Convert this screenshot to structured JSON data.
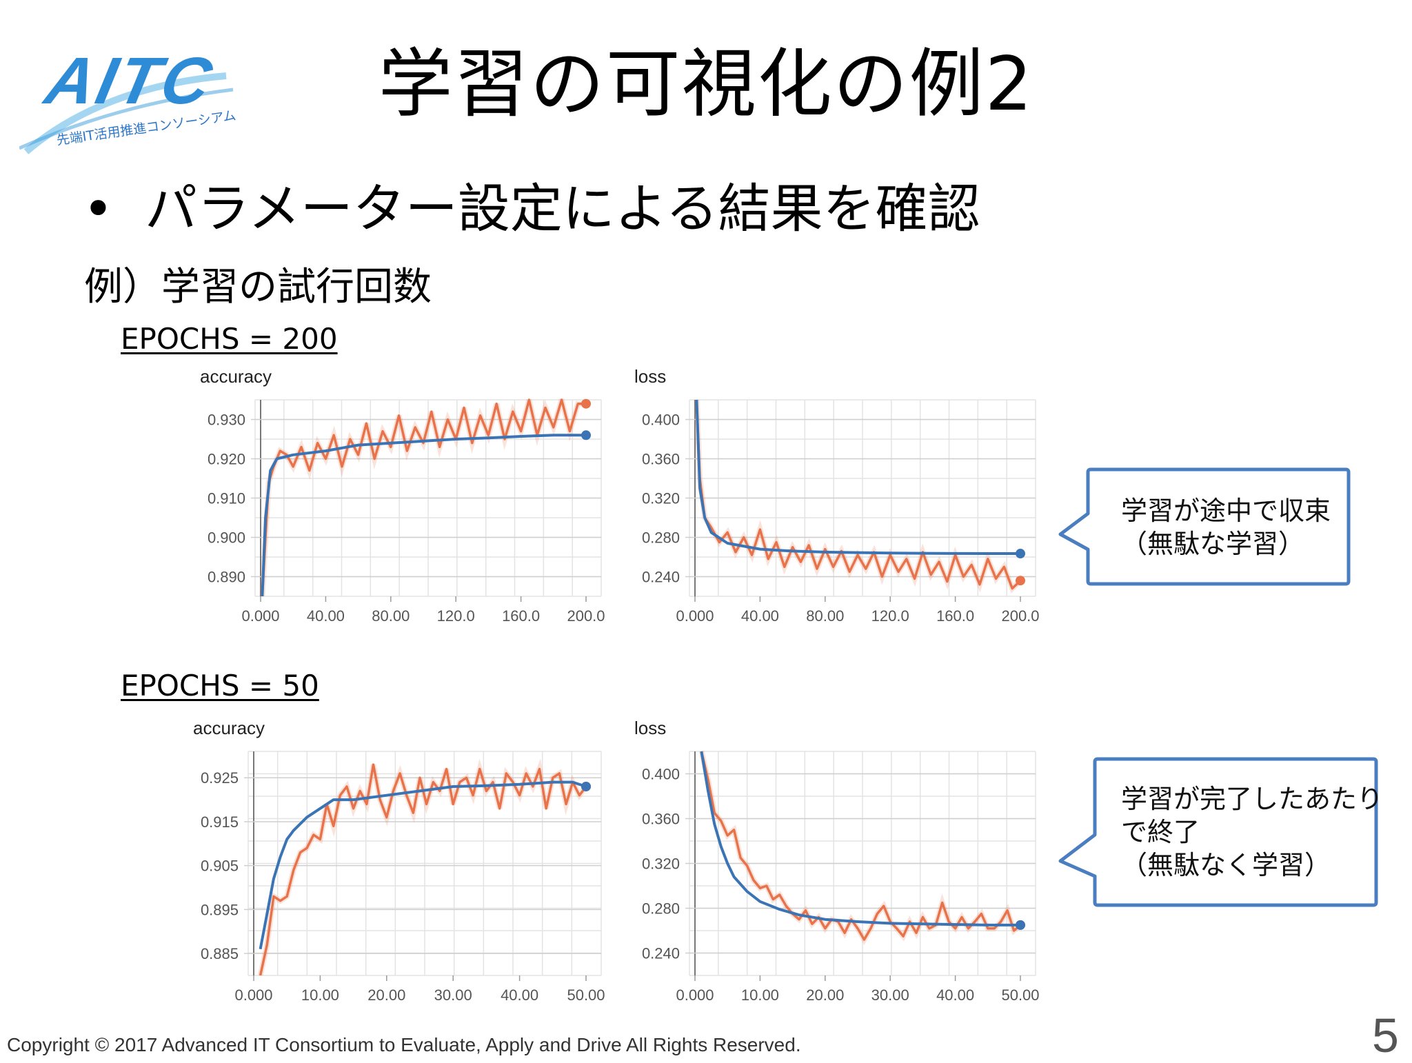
{
  "logo": {
    "wordmark": "AITC",
    "tagline": "先端IT活用推進コンソーシアム"
  },
  "slide": {
    "title": "学習の可視化の例2",
    "bullet": "パラメーター設定による結果を確認",
    "example": "例）学習の試行回数",
    "epochs_200": "EPOCHS = 200",
    "epochs_50": "EPOCHS = 50"
  },
  "callouts": {
    "top": [
      "学習が途中で収束",
      "（無駄な学習）"
    ],
    "bottom": [
      "学習が完了したあたり",
      "で終了",
      "（無駄なく学習）"
    ]
  },
  "colors": {
    "raw": "#E8734A",
    "smoothed": "#3A74B5",
    "callout_border": "#4A7EC0"
  },
  "chart_data": [
    {
      "type": "line",
      "title": "accuracy",
      "x_ticks": [
        "0.000",
        "40.00",
        "80.00",
        "120.0",
        "160.0",
        "200.0"
      ],
      "y_ticks": [
        "0.930",
        "0.920",
        "0.910",
        "0.900",
        "0.890"
      ],
      "xlim": [
        0,
        200
      ],
      "ylim": [
        0.885,
        0.935
      ],
      "series": [
        {
          "values": [
            [
              1,
              0.885
            ],
            [
              3,
              0.9
            ],
            [
              5,
              0.914
            ],
            [
              8,
              0.918
            ],
            [
              12,
              0.922
            ],
            [
              16,
              0.921
            ],
            [
              20,
              0.918
            ],
            [
              25,
              0.923
            ],
            [
              30,
              0.917
            ],
            [
              35,
              0.924
            ],
            [
              40,
              0.92
            ],
            [
              45,
              0.926
            ],
            [
              50,
              0.918
            ],
            [
              55,
              0.925
            ],
            [
              60,
              0.921
            ],
            [
              65,
              0.929
            ],
            [
              70,
              0.92
            ],
            [
              75,
              0.927
            ],
            [
              80,
              0.923
            ],
            [
              85,
              0.931
            ],
            [
              90,
              0.922
            ],
            [
              95,
              0.928
            ],
            [
              100,
              0.924
            ],
            [
              105,
              0.932
            ],
            [
              110,
              0.923
            ],
            [
              115,
              0.93
            ],
            [
              120,
              0.925
            ],
            [
              125,
              0.933
            ],
            [
              130,
              0.924
            ],
            [
              135,
              0.931
            ],
            [
              140,
              0.926
            ],
            [
              145,
              0.934
            ],
            [
              150,
              0.925
            ],
            [
              155,
              0.932
            ],
            [
              160,
              0.927
            ],
            [
              165,
              0.935
            ],
            [
              170,
              0.926
            ],
            [
              175,
              0.933
            ],
            [
              180,
              0.928
            ],
            [
              185,
              0.935
            ],
            [
              190,
              0.927
            ],
            [
              195,
              0.934
            ],
            [
              200,
              0.934
            ]
          ]
        },
        {
          "values": [
            [
              1,
              0.885
            ],
            [
              3,
              0.905
            ],
            [
              6,
              0.917
            ],
            [
              10,
              0.92
            ],
            [
              20,
              0.921
            ],
            [
              40,
              0.922
            ],
            [
              60,
              0.9235
            ],
            [
              80,
              0.924
            ],
            [
              100,
              0.9245
            ],
            [
              120,
              0.925
            ],
            [
              140,
              0.9253
            ],
            [
              160,
              0.9257
            ],
            [
              180,
              0.926
            ],
            [
              200,
              0.926
            ]
          ]
        }
      ]
    },
    {
      "type": "line",
      "title": "loss",
      "x_ticks": [
        "0.000",
        "40.00",
        "80.00",
        "120.0",
        "160.0",
        "200.0"
      ],
      "y_ticks": [
        "0.400",
        "0.360",
        "0.320",
        "0.280",
        "0.240"
      ],
      "xlim": [
        0,
        200
      ],
      "ylim": [
        0.22,
        0.42
      ],
      "series": [
        {
          "values": [
            [
              1,
              0.42
            ],
            [
              3,
              0.34
            ],
            [
              6,
              0.3
            ],
            [
              10,
              0.29
            ],
            [
              15,
              0.275
            ],
            [
              20,
              0.285
            ],
            [
              25,
              0.265
            ],
            [
              30,
              0.28
            ],
            [
              35,
              0.262
            ],
            [
              40,
              0.288
            ],
            [
              45,
              0.258
            ],
            [
              50,
              0.275
            ],
            [
              55,
              0.25
            ],
            [
              60,
              0.27
            ],
            [
              65,
              0.255
            ],
            [
              70,
              0.272
            ],
            [
              75,
              0.248
            ],
            [
              80,
              0.268
            ],
            [
              85,
              0.25
            ],
            [
              90,
              0.266
            ],
            [
              95,
              0.245
            ],
            [
              100,
              0.262
            ],
            [
              105,
              0.248
            ],
            [
              110,
              0.265
            ],
            [
              115,
              0.24
            ],
            [
              120,
              0.262
            ],
            [
              125,
              0.245
            ],
            [
              130,
              0.258
            ],
            [
              135,
              0.238
            ],
            [
              140,
              0.265
            ],
            [
              145,
              0.242
            ],
            [
              150,
              0.255
            ],
            [
              155,
              0.235
            ],
            [
              160,
              0.262
            ],
            [
              165,
              0.24
            ],
            [
              170,
              0.252
            ],
            [
              175,
              0.232
            ],
            [
              180,
              0.258
            ],
            [
              185,
              0.238
            ],
            [
              190,
              0.25
            ],
            [
              195,
              0.228
            ],
            [
              200,
              0.236
            ]
          ]
        },
        {
          "values": [
            [
              1,
              0.42
            ],
            [
              3,
              0.33
            ],
            [
              6,
              0.3
            ],
            [
              10,
              0.285
            ],
            [
              20,
              0.274
            ],
            [
              40,
              0.268
            ],
            [
              60,
              0.266
            ],
            [
              80,
              0.265
            ],
            [
              100,
              0.2645
            ],
            [
              120,
              0.264
            ],
            [
              140,
              0.2638
            ],
            [
              160,
              0.2636
            ],
            [
              180,
              0.2635
            ],
            [
              200,
              0.2635
            ]
          ]
        }
      ]
    },
    {
      "type": "line",
      "title": "accuracy",
      "x_ticks": [
        "0.000",
        "10.00",
        "20.00",
        "30.00",
        "40.00",
        "50.00"
      ],
      "y_ticks": [
        "0.925",
        "0.915",
        "0.905",
        "0.895",
        "0.885"
      ],
      "xlim": [
        0,
        50
      ],
      "ylim": [
        0.88,
        0.931
      ],
      "series": [
        {
          "values": [
            [
              1,
              0.88
            ],
            [
              2,
              0.887
            ],
            [
              3,
              0.898
            ],
            [
              4,
              0.897
            ],
            [
              5,
              0.898
            ],
            [
              6,
              0.904
            ],
            [
              7,
              0.908
            ],
            [
              8,
              0.909
            ],
            [
              9,
              0.912
            ],
            [
              10,
              0.911
            ],
            [
              11,
              0.919
            ],
            [
              12,
              0.914
            ],
            [
              13,
              0.921
            ],
            [
              14,
              0.923
            ],
            [
              15,
              0.918
            ],
            [
              16,
              0.922
            ],
            [
              17,
              0.919
            ],
            [
              18,
              0.928
            ],
            [
              19,
              0.92
            ],
            [
              20,
              0.916
            ],
            [
              21,
              0.922
            ],
            [
              22,
              0.926
            ],
            [
              23,
              0.921
            ],
            [
              24,
              0.917
            ],
            [
              25,
              0.925
            ],
            [
              26,
              0.919
            ],
            [
              27,
              0.924
            ],
            [
              28,
              0.922
            ],
            [
              29,
              0.927
            ],
            [
              30,
              0.919
            ],
            [
              31,
              0.924
            ],
            [
              32,
              0.925
            ],
            [
              33,
              0.921
            ],
            [
              34,
              0.927
            ],
            [
              35,
              0.922
            ],
            [
              36,
              0.924
            ],
            [
              37,
              0.918
            ],
            [
              38,
              0.926
            ],
            [
              39,
              0.924
            ],
            [
              40,
              0.921
            ],
            [
              41,
              0.926
            ],
            [
              42,
              0.923
            ],
            [
              43,
              0.927
            ],
            [
              44,
              0.918
            ],
            [
              45,
              0.925
            ],
            [
              46,
              0.926
            ],
            [
              47,
              0.919
            ],
            [
              48,
              0.924
            ],
            [
              49,
              0.921
            ],
            [
              50,
              0.923
            ]
          ]
        },
        {
          "values": [
            [
              1,
              0.886
            ],
            [
              2,
              0.894
            ],
            [
              3,
              0.902
            ],
            [
              4,
              0.907
            ],
            [
              5,
              0.911
            ],
            [
              6,
              0.913
            ],
            [
              8,
              0.916
            ],
            [
              10,
              0.918
            ],
            [
              12,
              0.92
            ],
            [
              15,
              0.92
            ],
            [
              20,
              0.921
            ],
            [
              25,
              0.922
            ],
            [
              30,
              0.923
            ],
            [
              35,
              0.9232
            ],
            [
              40,
              0.9235
            ],
            [
              45,
              0.924
            ],
            [
              48,
              0.924
            ],
            [
              50,
              0.923
            ]
          ]
        }
      ]
    },
    {
      "type": "line",
      "title": "loss",
      "x_ticks": [
        "0.000",
        "10.00",
        "20.00",
        "30.00",
        "40.00",
        "50.00"
      ],
      "y_ticks": [
        "0.400",
        "0.360",
        "0.320",
        "0.280",
        "0.240"
      ],
      "xlim": [
        0,
        50
      ],
      "ylim": [
        0.22,
        0.42
      ],
      "series": [
        {
          "values": [
            [
              1,
              0.42
            ],
            [
              2,
              0.395
            ],
            [
              3,
              0.365
            ],
            [
              4,
              0.358
            ],
            [
              5,
              0.345
            ],
            [
              6,
              0.35
            ],
            [
              7,
              0.325
            ],
            [
              8,
              0.318
            ],
            [
              9,
              0.305
            ],
            [
              10,
              0.298
            ],
            [
              11,
              0.3
            ],
            [
              12,
              0.288
            ],
            [
              13,
              0.292
            ],
            [
              14,
              0.282
            ],
            [
              15,
              0.275
            ],
            [
              16,
              0.27
            ],
            [
              17,
              0.278
            ],
            [
              18,
              0.266
            ],
            [
              19,
              0.272
            ],
            [
              20,
              0.262
            ],
            [
              21,
              0.27
            ],
            [
              22,
              0.268
            ],
            [
              23,
              0.258
            ],
            [
              24,
              0.27
            ],
            [
              25,
              0.262
            ],
            [
              26,
              0.252
            ],
            [
              27,
              0.262
            ],
            [
              28,
              0.275
            ],
            [
              29,
              0.282
            ],
            [
              30,
              0.268
            ],
            [
              31,
              0.262
            ],
            [
              32,
              0.255
            ],
            [
              33,
              0.268
            ],
            [
              34,
              0.258
            ],
            [
              35,
              0.272
            ],
            [
              36,
              0.262
            ],
            [
              37,
              0.265
            ],
            [
              38,
              0.285
            ],
            [
              39,
              0.268
            ],
            [
              40,
              0.262
            ],
            [
              41,
              0.272
            ],
            [
              42,
              0.262
            ],
            [
              43,
              0.268
            ],
            [
              44,
              0.275
            ],
            [
              45,
              0.262
            ],
            [
              46,
              0.262
            ],
            [
              47,
              0.268
            ],
            [
              48,
              0.278
            ],
            [
              49,
              0.26
            ],
            [
              50,
              0.265
            ]
          ]
        },
        {
          "values": [
            [
              1,
              0.42
            ],
            [
              2,
              0.385
            ],
            [
              3,
              0.355
            ],
            [
              4,
              0.335
            ],
            [
              5,
              0.32
            ],
            [
              6,
              0.308
            ],
            [
              8,
              0.295
            ],
            [
              10,
              0.286
            ],
            [
              13,
              0.279
            ],
            [
              16,
              0.274
            ],
            [
              20,
              0.27
            ],
            [
              25,
              0.268
            ],
            [
              30,
              0.2665
            ],
            [
              35,
              0.266
            ],
            [
              40,
              0.2655
            ],
            [
              45,
              0.265
            ],
            [
              50,
              0.265
            ]
          ]
        }
      ]
    }
  ],
  "footer": {
    "copyright": "Copyright © 2017 Advanced IT Consortium to Evaluate, Apply and Drive All Rights Reserved.",
    "page": "5"
  }
}
